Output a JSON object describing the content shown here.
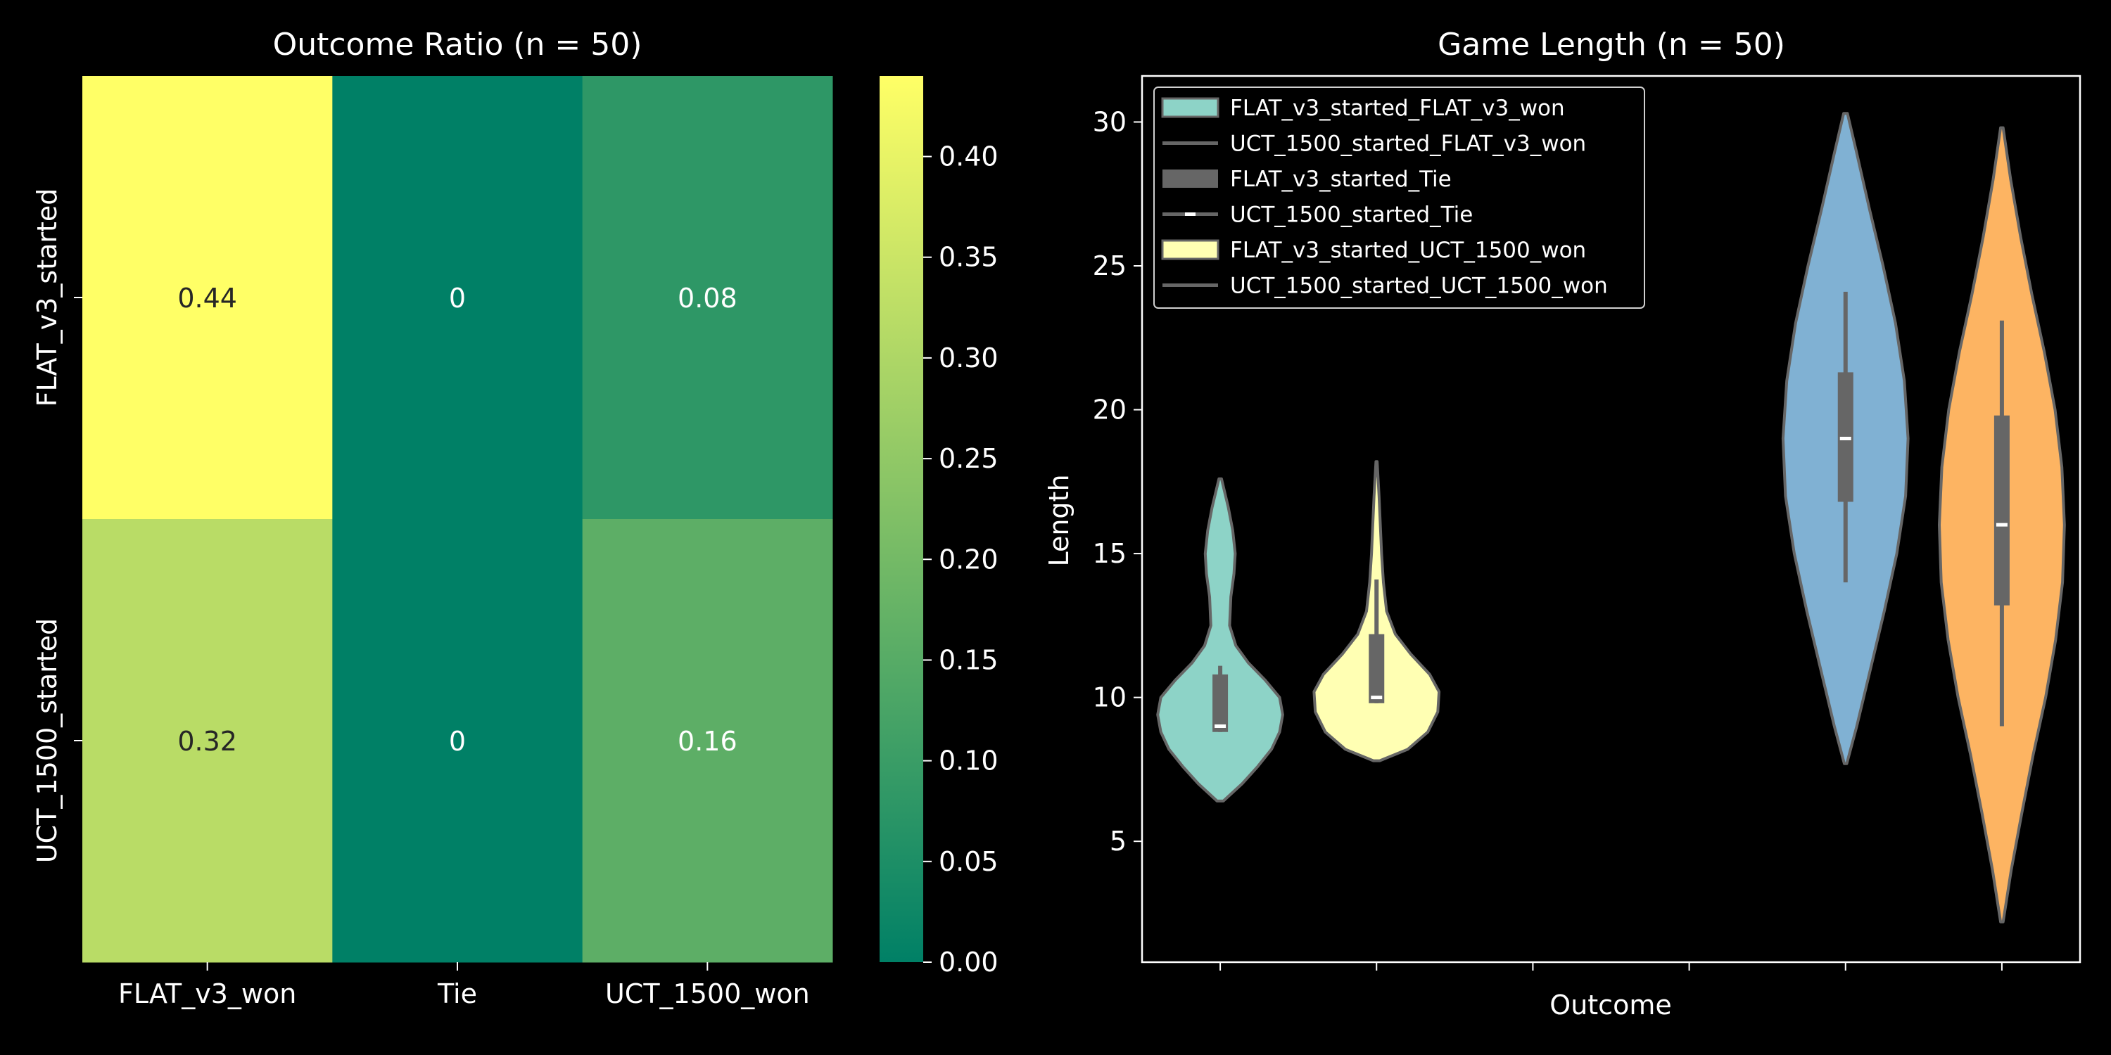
{
  "chart_data": [
    {
      "type": "heatmap",
      "title": "Outcome Ratio (n = 50)",
      "x_categories": [
        "FLAT_v3_won",
        "Tie",
        "UCT_1500_won"
      ],
      "y_categories": [
        "FLAT_v3_started",
        "UCT_1500_started"
      ],
      "values": [
        [
          0.44,
          0,
          0.08
        ],
        [
          0.32,
          0,
          0.16
        ]
      ],
      "value_labels": [
        [
          "0.44",
          "0",
          "0.08"
        ],
        [
          "0.32",
          "0",
          "0.16"
        ]
      ],
      "colorbar": {
        "cmap": "summer",
        "range": [
          0,
          0.44
        ],
        "ticks": [
          0.0,
          0.05,
          0.1,
          0.15,
          0.2,
          0.25,
          0.3,
          0.35,
          0.4
        ],
        "tick_labels": [
          "0.00",
          "0.05",
          "0.10",
          "0.15",
          "0.20",
          "0.25",
          "0.30",
          "0.35",
          "0.40"
        ]
      }
    },
    {
      "type": "violin",
      "title": "Game Length (n = 50)",
      "xlabel": "Outcome",
      "ylabel": "Length",
      "ylim": [
        0.8,
        31.6
      ],
      "yticks": [
        5,
        10,
        15,
        20,
        25,
        30
      ],
      "ytick_labels": [
        "5",
        "10",
        "15",
        "20",
        "25",
        "30"
      ],
      "x_positions": 6,
      "legend": {
        "placement": "upper-left",
        "entries": [
          "FLAT_v3_started_FLAT_v3_won",
          "UCT_1500_started_FLAT_v3_won",
          "FLAT_v3_started_Tie",
          "UCT_1500_started_Tie",
          "FLAT_v3_started_UCT_1500_won",
          "UCT_1500_started_UCT_1500_won"
        ]
      },
      "series": [
        {
          "position": 0,
          "color": "#8dd3c7",
          "min": 6.4,
          "max": 17.6,
          "q1": 8.8,
          "median": 9.0,
          "q3": 10.8,
          "whisker_low": 8.8,
          "whisker_high": 11.1,
          "density": [
            [
              6.4,
              0.05
            ],
            [
              7.0,
              0.35
            ],
            [
              7.6,
              0.6
            ],
            [
              8.2,
              0.82
            ],
            [
              8.8,
              0.95
            ],
            [
              9.4,
              1.0
            ],
            [
              10.0,
              0.95
            ],
            [
              10.6,
              0.72
            ],
            [
              11.2,
              0.45
            ],
            [
              11.8,
              0.25
            ],
            [
              12.5,
              0.15
            ],
            [
              13.5,
              0.17
            ],
            [
              14.3,
              0.22
            ],
            [
              15.0,
              0.24
            ],
            [
              15.8,
              0.2
            ],
            [
              16.6,
              0.13
            ],
            [
              17.6,
              0.02
            ]
          ]
        },
        {
          "position": 1,
          "color": "#ffffb3",
          "min": 7.8,
          "max": 18.2,
          "q1": 9.8,
          "median": 10.0,
          "q3": 12.2,
          "whisker_low": 9.8,
          "whisker_high": 14.1,
          "density": [
            [
              7.8,
              0.05
            ],
            [
              8.2,
              0.5
            ],
            [
              8.8,
              0.82
            ],
            [
              9.5,
              0.98
            ],
            [
              10.2,
              1.0
            ],
            [
              10.8,
              0.85
            ],
            [
              11.5,
              0.55
            ],
            [
              12.2,
              0.3
            ],
            [
              13.0,
              0.16
            ],
            [
              14.0,
              0.11
            ],
            [
              15.0,
              0.08
            ],
            [
              16.0,
              0.06
            ],
            [
              17.0,
              0.04
            ],
            [
              18.2,
              0.01
            ]
          ]
        },
        {
          "position": 4,
          "color": "#80b1d3",
          "min": 7.7,
          "max": 30.3,
          "q1": 16.8,
          "median": 19.0,
          "q3": 21.3,
          "whisker_low": 14.0,
          "whisker_high": 24.1,
          "density": [
            [
              7.7,
              0.02
            ],
            [
              9.0,
              0.18
            ],
            [
              11.0,
              0.4
            ],
            [
              13.0,
              0.62
            ],
            [
              15.0,
              0.82
            ],
            [
              17.0,
              0.96
            ],
            [
              19.0,
              1.0
            ],
            [
              21.0,
              0.94
            ],
            [
              23.0,
              0.8
            ],
            [
              25.0,
              0.6
            ],
            [
              27.0,
              0.38
            ],
            [
              29.0,
              0.17
            ],
            [
              30.3,
              0.03
            ]
          ]
        },
        {
          "position": 5,
          "color": "#fdb462",
          "min": 2.2,
          "max": 29.8,
          "q1": 13.2,
          "median": 16.0,
          "q3": 19.8,
          "whisker_low": 9.0,
          "whisker_high": 23.1,
          "density": [
            [
              2.2,
              0.02
            ],
            [
              4.0,
              0.15
            ],
            [
              6.0,
              0.32
            ],
            [
              8.0,
              0.5
            ],
            [
              10.0,
              0.7
            ],
            [
              12.0,
              0.86
            ],
            [
              14.0,
              0.97
            ],
            [
              16.0,
              1.0
            ],
            [
              18.0,
              0.96
            ],
            [
              20.0,
              0.85
            ],
            [
              22.0,
              0.68
            ],
            [
              24.0,
              0.48
            ],
            [
              26.0,
              0.3
            ],
            [
              28.0,
              0.14
            ],
            [
              29.8,
              0.02
            ]
          ]
        }
      ]
    }
  ]
}
